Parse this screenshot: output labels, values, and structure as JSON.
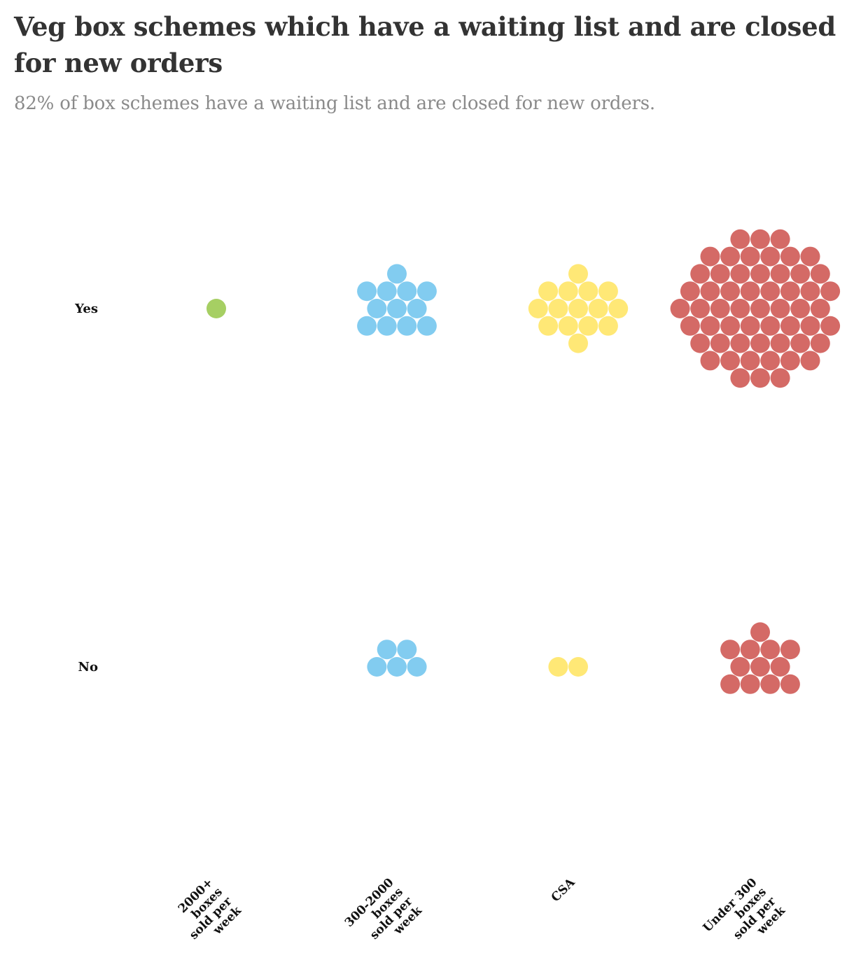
{
  "title": "Veg box schemes which have a waiting list and are closed for new orders",
  "subtitle": "82% of box schemes have a waiting list and are closed for new orders.",
  "chart_data": {
    "type": "beeswarm",
    "title": "Veg box schemes which have a waiting list and are closed for new orders",
    "subtitle": "82% of box schemes have a waiting list and are closed for new orders.",
    "rows": [
      "Yes",
      "No"
    ],
    "columns": [
      [
        "2000+",
        "boxes",
        "sold per",
        "week"
      ],
      [
        "300-2000",
        "boxes",
        "sold per",
        "week"
      ],
      [
        "CSA"
      ],
      [
        "Under 300",
        "boxes",
        "sold per",
        "week"
      ]
    ],
    "colors": [
      "#a6cf63",
      "#82ccf0",
      "#ffe876",
      "#d46a66"
    ],
    "counts": {
      "Yes": [
        1,
        12,
        15,
        56
      ],
      "No": [
        0,
        5,
        2,
        12
      ]
    }
  }
}
